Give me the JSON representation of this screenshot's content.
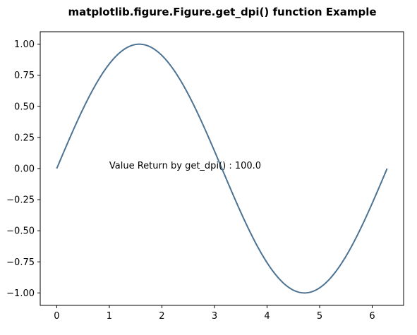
{
  "chart_data": {
    "type": "line",
    "title": "matplotlib.figure.Figure.get_dpi() function Example",
    "xlabel": "",
    "ylabel": "",
    "xlim": [
      -0.314,
      6.597
    ],
    "ylim": [
      -1.1,
      1.1
    ],
    "xticks": [
      0,
      1,
      2,
      3,
      4,
      5,
      6
    ],
    "xtick_labels": [
      "0",
      "1",
      "2",
      "3",
      "4",
      "5",
      "6"
    ],
    "yticks": [
      1.0,
      0.75,
      0.5,
      0.25,
      0.0,
      -0.25,
      -0.5,
      -0.75,
      -1.0
    ],
    "ytick_labels": [
      "1.00",
      "0.75",
      "0.50",
      "0.25",
      "0.00",
      "−0.25",
      "−0.50",
      "−0.75",
      "−1.00"
    ],
    "grid": false,
    "series": [
      {
        "function": "sin(x)",
        "x_start": 0,
        "x_end": 6.283,
        "color": "#4c7393"
      }
    ],
    "annotations": [
      {
        "text": "Value Return by get_dpi() : 100.0",
        "x": 1.0,
        "y": 0.0
      }
    ]
  }
}
